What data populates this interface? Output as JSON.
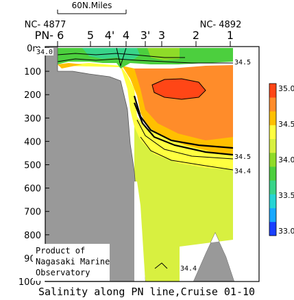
{
  "chart_data": {
    "type": "heatmap",
    "title": "Salinity along PN line,Cruise 01-10",
    "scale_label": "60N.Miles",
    "left_station_code": "NC- 4877",
    "right_station_code": "NC- 4892",
    "stations": [
      "PN- 6",
      "5",
      "4'",
      "4",
      "3'",
      "3",
      "2",
      "1"
    ],
    "y_ticks": [
      "0m",
      "100",
      "200",
      "300",
      "400",
      "500",
      "600",
      "700",
      "800",
      "900",
      "1000"
    ],
    "ylim": [
      0,
      1000
    ],
    "y_unit": "m",
    "colorbar": {
      "min": 33.0,
      "max": 35.0,
      "ticks": [
        "35.0",
        "34.5",
        "34.0",
        "33.5",
        "33.0"
      ],
      "colors": [
        "#1a40ff",
        "#18a8ff",
        "#26d4d4",
        "#38d489",
        "#4ccf3e",
        "#8fdb28",
        "#d8f040",
        "#ffff40",
        "#ffc000",
        "#ff8c2a",
        "#ff4616"
      ]
    },
    "contour_labels": [
      "34.0",
      "34.5",
      "34.5",
      "34.4",
      "34.4"
    ],
    "annotation": [
      "Product of",
      "Nagasaki Marine",
      "Observatory"
    ]
  }
}
